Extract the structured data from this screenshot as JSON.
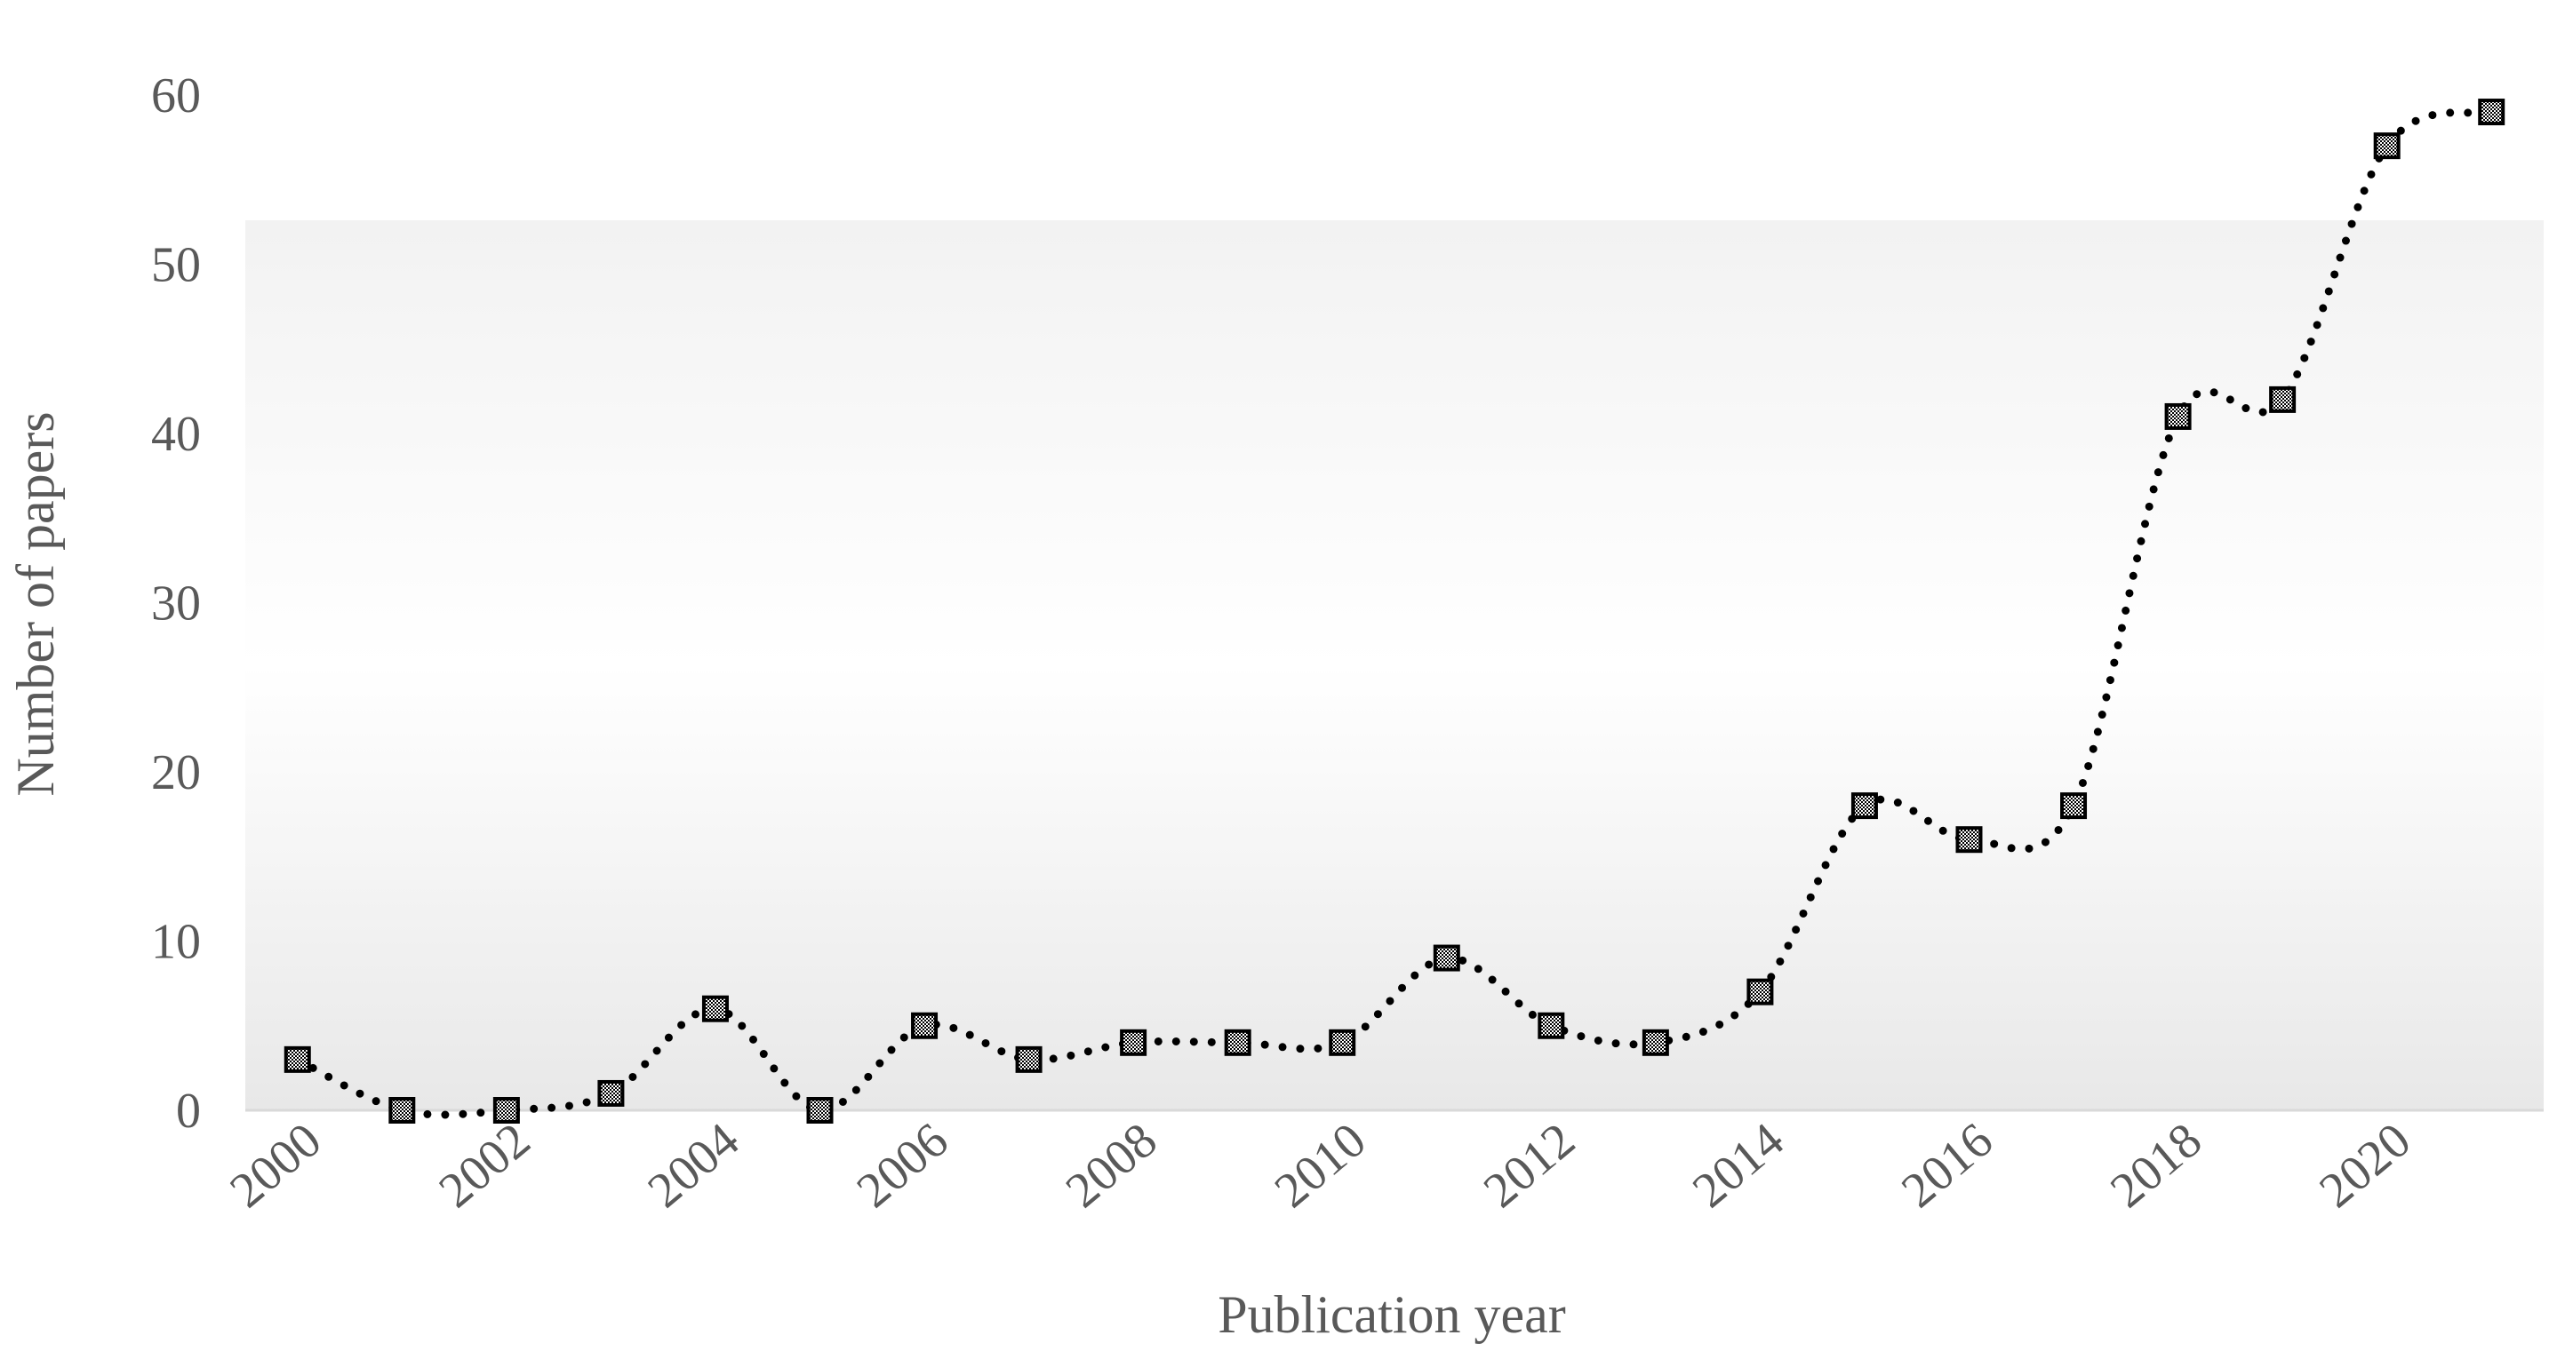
{
  "chart_data": {
    "type": "line",
    "x_label": "Publication year",
    "y_label": "Number of papers",
    "x": [
      2000,
      2001,
      2002,
      2003,
      2004,
      2005,
      2006,
      2007,
      2008,
      2009,
      2010,
      2011,
      2012,
      2013,
      2014,
      2015,
      2016,
      2017,
      2018,
      2019,
      2020,
      2021
    ],
    "values": [
      3,
      0,
      0,
      1,
      6,
      0,
      5,
      3,
      4,
      4,
      4,
      9,
      5,
      4,
      7,
      18,
      16,
      18,
      41,
      42,
      57,
      59
    ],
    "color": "#000000",
    "xlim": [
      1999.5,
      2021.5
    ],
    "xticks": [
      2000,
      2002,
      2004,
      2006,
      2008,
      2010,
      2012,
      2014,
      2016,
      2018,
      2020
    ],
    "ylim": [
      0,
      60
    ],
    "yticks": [
      0,
      10,
      20,
      30,
      40,
      50,
      60
    ],
    "grid": false
  }
}
